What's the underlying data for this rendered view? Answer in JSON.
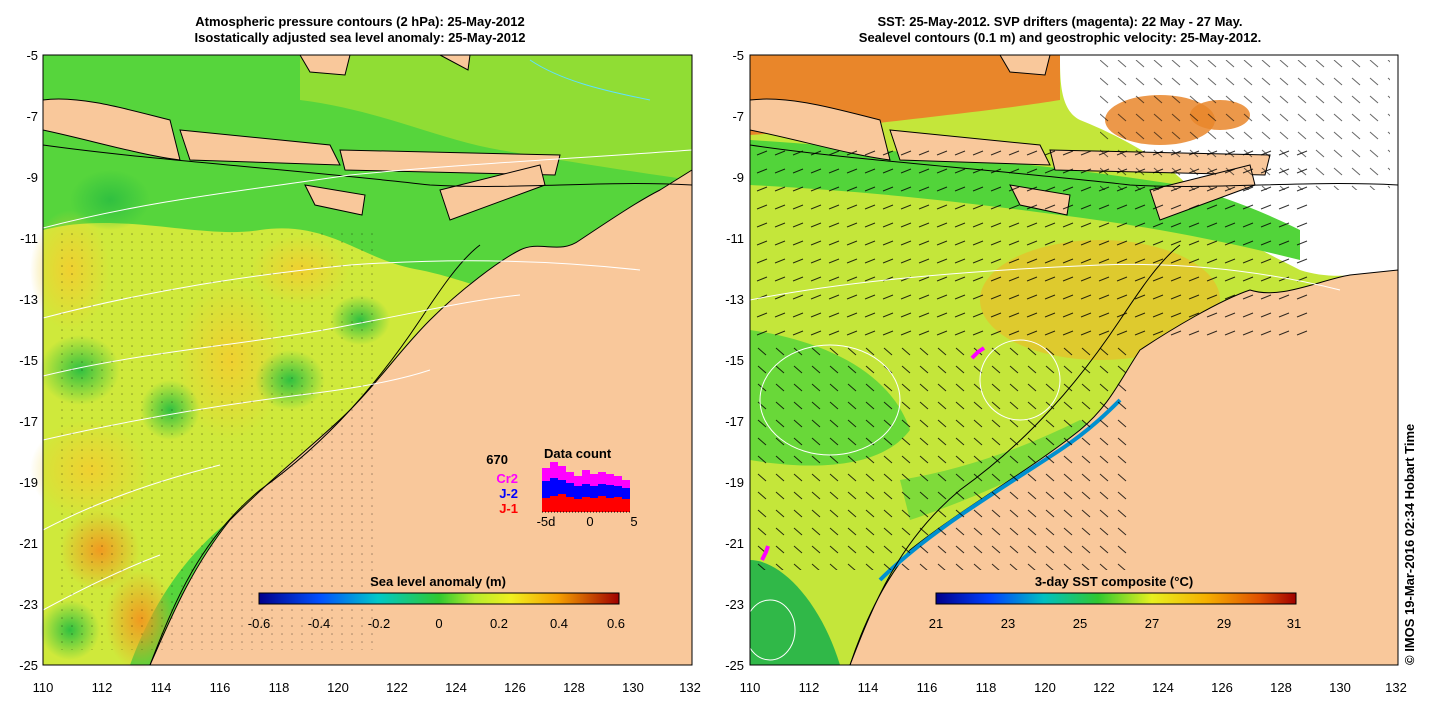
{
  "left_panel": {
    "title_line1": "Atmospheric pressure contours (2 hPa): 25-May-2012",
    "title_line2": "Isostatically adjusted sea level anomaly: 25-May-2012",
    "y_ticks": [
      "-5",
      "-7",
      "-9",
      "-11",
      "-13",
      "-15",
      "-17",
      "-19",
      "-21",
      "-23",
      "-25"
    ],
    "x_ticks": [
      "110",
      "112",
      "114",
      "116",
      "118",
      "120",
      "122",
      "124",
      "126",
      "128",
      "130",
      "132"
    ],
    "colorbar": {
      "label": "Sea level anomaly (m)",
      "ticks": [
        "-0.6",
        "-0.4",
        "-0.2",
        "0",
        "0.2",
        "0.4",
        "0.6"
      ],
      "range": [
        -0.6,
        0.6
      ]
    },
    "data_count": {
      "title": "Data count",
      "total": "670",
      "missions": [
        {
          "name": "Cr2",
          "color": "#ff00ff"
        },
        {
          "name": "J-2",
          "color": "#0000ff"
        },
        {
          "name": "J-1",
          "color": "#ff0000"
        }
      ],
      "axis_labels": [
        "-5d",
        "0",
        "5"
      ]
    }
  },
  "right_panel": {
    "title_line1": "SST: 25-May-2012. SVP drifters (magenta): 22 May - 27 May.",
    "title_line2": "Sealevel contours (0.1 m) and geostrophic velocity: 25-May-2012.",
    "y_ticks": [
      "-5",
      "-7",
      "-9",
      "-11",
      "-13",
      "-15",
      "-17",
      "-19",
      "-21",
      "-23",
      "-25"
    ],
    "x_ticks": [
      "110",
      "112",
      "114",
      "116",
      "118",
      "120",
      "122",
      "124",
      "126",
      "128",
      "130",
      "132"
    ],
    "colorbar": {
      "label": "3-day SST composite (°C)",
      "ticks": [
        "21",
        "23",
        "25",
        "27",
        "29",
        "31"
      ],
      "range": [
        21,
        31
      ]
    }
  },
  "credit": "© IMOS 19-Mar-2016 02:34 Hobart Time",
  "colors": {
    "land": "#f9c89b",
    "ocean_green": "#52d43a",
    "ocean_yellow": "#cfe93b",
    "ocean_orange": "#f4b324",
    "sst_orange": "#e9862a",
    "drifter": "#ff00ff"
  }
}
